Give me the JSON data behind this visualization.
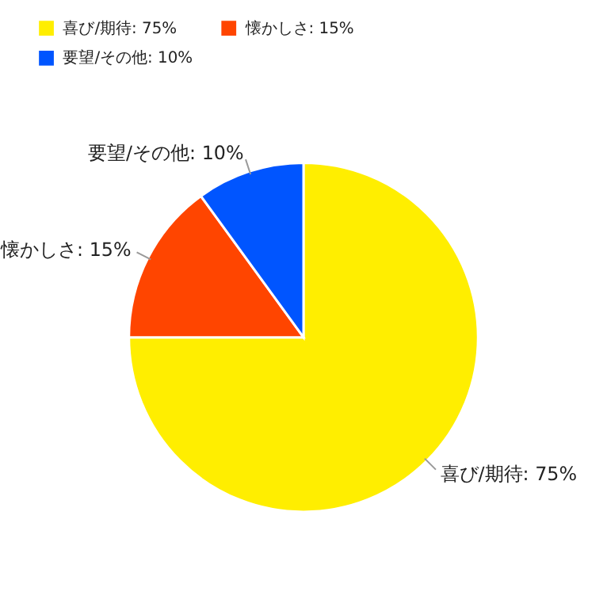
{
  "chart_data": {
    "type": "pie",
    "categories": [
      "喜び/期待: 75%",
      "懐かしさ: 15%",
      "要望/その他: 10%"
    ],
    "values": [
      75,
      15,
      10
    ],
    "colors": [
      "#ffee00",
      "#ff4500",
      "#0055ff"
    ],
    "legend": "top left"
  }
}
